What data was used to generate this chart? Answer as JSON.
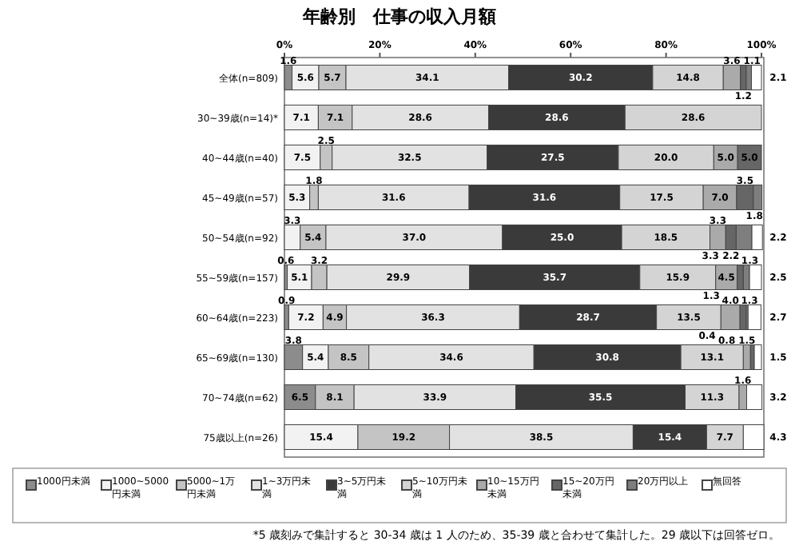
{
  "chart_data": {
    "type": "bar",
    "orientation": "horizontal",
    "stacked": true,
    "legend": "bottom",
    "title": "年齢別　仕事の収入月額",
    "categories": [
      "全体(n=809)",
      "30~39歳(n=14)*",
      "40~44歳(n=40)",
      "45~49歳(n=57)",
      "50~54歳(n=92)",
      "55~59歳(n=157)",
      "60~64歳(n=223)",
      "65~69歳(n=130)",
      "70~74歳(n=62)",
      "75歳以上(n=26)"
    ],
    "xlim": [
      0,
      100.5
    ],
    "xticks": [
      {
        "value": 0,
        "label": "0%"
      },
      {
        "value": 20,
        "label": "20%"
      },
      {
        "value": 40,
        "label": "40%"
      },
      {
        "value": 60,
        "label": "60%"
      },
      {
        "value": 80,
        "label": "80%"
      },
      {
        "value": 100,
        "label": "100%"
      }
    ],
    "series": [
      {
        "name": "1000円未満",
        "color": "#8c8c8c",
        "values": [
          1.6,
          null,
          null,
          null,
          null,
          0.6,
          0.9,
          3.8,
          6.5,
          null
        ],
        "value_labels": [
          "1.6",
          null,
          null,
          null,
          null,
          "0.6",
          "0.9",
          "3.8",
          "6.5",
          null
        ]
      },
      {
        "name": "1000~5000円未満",
        "color": "#f2f2f2",
        "values": [
          5.6,
          7.1,
          7.5,
          5.3,
          3.3,
          5.1,
          7.2,
          5.4,
          null,
          15.4
        ],
        "value_labels": [
          "5.6",
          "7.1",
          "7.5",
          "5.3",
          "3.3",
          "5.1",
          "7.2",
          "5.4",
          null,
          "15.4"
        ]
      },
      {
        "name": "5000~1万円未満",
        "color": "#c4c4c4",
        "values": [
          5.7,
          7.1,
          2.5,
          1.8,
          5.4,
          3.2,
          4.9,
          8.5,
          8.1,
          19.2
        ],
        "value_labels": [
          "5.7",
          "7.1",
          "2.5",
          "1.8",
          "5.4",
          "3.2",
          "4.9",
          "8.5",
          "8.1",
          "19.2"
        ]
      },
      {
        "name": "1~3万円未満",
        "color": "#e2e2e2",
        "values": [
          34.1,
          28.6,
          32.5,
          31.6,
          37.0,
          29.9,
          36.3,
          34.6,
          33.9,
          38.5
        ],
        "value_labels": [
          "34.1",
          "28.6",
          "32.5",
          "31.6",
          "37.0",
          "29.9",
          "36.3",
          "34.6",
          "33.9",
          "38.5"
        ]
      },
      {
        "name": "3~5万円未満",
        "color": "#3a3a3a",
        "values": [
          30.2,
          28.6,
          27.5,
          31.6,
          25.0,
          35.7,
          28.7,
          30.8,
          35.5,
          15.4
        ],
        "value_labels": [
          "30.2",
          "28.6",
          "27.5",
          "31.6",
          "25.0",
          "35.7",
          "28.7",
          "30.8",
          "35.5",
          "15.4"
        ]
      },
      {
        "name": "5~10万円未満",
        "color": "#d4d4d4",
        "values": [
          14.8,
          28.6,
          20.0,
          17.5,
          18.5,
          15.9,
          13.5,
          13.1,
          11.3,
          7.7
        ],
        "value_labels": [
          "14.8",
          "28.6",
          "20.0",
          "17.5",
          "18.5",
          "15.9",
          "13.5",
          "13.1",
          "11.3",
          "7.7"
        ]
      },
      {
        "name": "10~15万円未満",
        "color": "#aaaaaa",
        "values": [
          3.6,
          null,
          5.0,
          7.0,
          3.3,
          4.5,
          4.0,
          1.5,
          1.6,
          null
        ],
        "value_labels": [
          "3.6",
          null,
          "5.0",
          "7.0",
          "3.3",
          "4.5",
          "4.0",
          "1.5",
          "1.6",
          null
        ]
      },
      {
        "name": "15~20万円未満",
        "color": "#666666",
        "values": [
          1.2,
          null,
          5.0,
          3.5,
          2.2,
          1.3,
          1.3,
          0.8,
          null,
          null
        ],
        "value_labels": [
          "1.2",
          null,
          "5.0",
          "3.5",
          "2.2",
          "1.3",
          "1.3",
          "0.8",
          null,
          null
        ]
      },
      {
        "name": "20万円以上",
        "color": "#7e7e7e",
        "values": [
          1.1,
          null,
          null,
          1.8,
          3.3,
          1.3,
          0.4,
          null,
          null,
          null
        ],
        "value_labels": [
          "1.1",
          null,
          null,
          "1.8",
          "3.3",
          "1.3",
          "0.4",
          null,
          null,
          null
        ]
      },
      {
        "name": "無回答",
        "color": "#ffffff",
        "values": [
          2.1,
          null,
          null,
          null,
          2.2,
          2.5,
          2.7,
          1.5,
          3.2,
          4.3
        ],
        "value_labels": [
          "2.1",
          null,
          null,
          null,
          "2.2",
          "2.5",
          "2.7",
          "1.5",
          "3.2",
          "4.3"
        ]
      }
    ],
    "annotations": [
      "*5 歳刻みで集計すると 30-34 歳は 1 人のため、35-39 歳と合わせて集計した。29 歳以下は回答ゼロ。"
    ]
  }
}
